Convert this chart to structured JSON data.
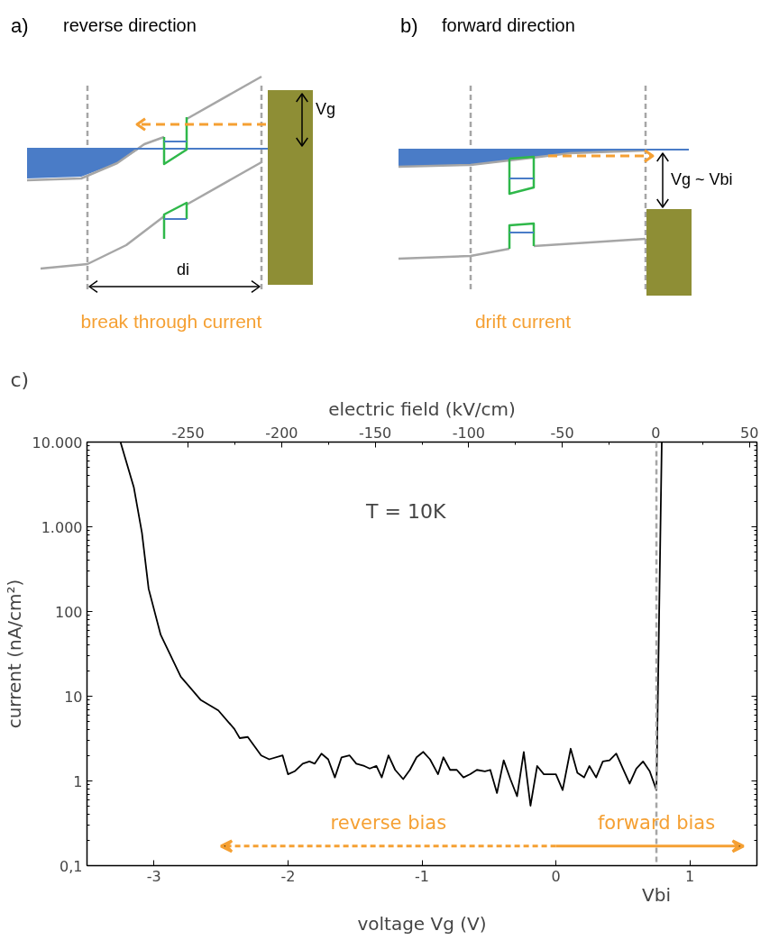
{
  "chart_data": [
    {
      "type": "other",
      "title": "reverse direction",
      "annotations": [
        "a)",
        "Vg",
        "di",
        "break through current"
      ]
    },
    {
      "type": "other",
      "title": "forward direction",
      "annotations": [
        "b)",
        "Vg ~ Vbi",
        "drift current"
      ]
    },
    {
      "type": "line",
      "xlabel": "voltage Vg (V)",
      "ylabel": "current (nA/cm²)",
      "x2label": "electric field (kV/cm)",
      "log": "y",
      "grid": false,
      "marker": "none",
      "line_style": "solid",
      "xlim": [
        -3.5,
        1.5
      ],
      "xticks": [
        -3,
        -2,
        -1,
        0,
        1
      ],
      "x2lim": [
        -304,
        54
      ],
      "x2ticks": [
        -250,
        -200,
        -150,
        -100,
        -50,
        0,
        50
      ],
      "ylim": [
        0.1,
        10000
      ],
      "yticks": [
        {
          "value": 0.1,
          "label": "0,1"
        },
        1,
        10,
        100,
        {
          "value": 1000,
          "label": "1.000"
        },
        {
          "value": 10000,
          "label": "10.000"
        }
      ],
      "series": [
        {
          "color": "#000000",
          "x": [
            -3.25,
            -3.15,
            -3.09,
            -3.04,
            -2.95,
            -2.8,
            -2.65,
            -2.52,
            -2.4,
            -2.36,
            -2.3,
            -2.2,
            -2.14,
            -2.04,
            -2.0,
            -1.95,
            -1.89,
            -1.84,
            -1.8,
            -1.75,
            -1.7,
            -1.65,
            -1.6,
            -1.54,
            -1.49,
            -1.43,
            -1.39,
            -1.34,
            -1.3,
            -1.25,
            -1.2,
            -1.14,
            -1.09,
            -1.04,
            -0.99,
            -0.94,
            -0.88,
            -0.84,
            -0.79,
            -0.74,
            -0.69,
            -0.64,
            -0.59,
            -0.53,
            -0.49,
            -0.44,
            -0.39,
            -0.34,
            -0.29,
            -0.24,
            -0.19,
            -0.14,
            -0.09,
            -0.03,
            0.0,
            0.05,
            0.11,
            0.16,
            0.21,
            0.25,
            0.3,
            0.35,
            0.4,
            0.45,
            0.5,
            0.55,
            0.6,
            0.65,
            0.7,
            0.75,
            0.79
          ],
          "values": [
            10000,
            2900,
            850,
            185,
            53,
            17,
            9,
            6.8,
            4.1,
            3.2,
            3.3,
            2.0,
            1.8,
            2.0,
            1.2,
            1.3,
            1.6,
            1.7,
            1.6,
            2.1,
            1.8,
            1.1,
            1.9,
            2.0,
            1.6,
            1.5,
            1.4,
            1.5,
            1.1,
            2.0,
            1.35,
            1.05,
            1.35,
            1.9,
            2.2,
            1.8,
            1.2,
            1.9,
            1.35,
            1.35,
            1.1,
            1.2,
            1.35,
            1.3,
            1.35,
            0.72,
            1.75,
            1.05,
            0.66,
            2.2,
            0.51,
            1.5,
            1.2,
            1.2,
            1.2,
            0.78,
            2.4,
            1.25,
            1.1,
            1.5,
            1.1,
            1.7,
            1.75,
            2.1,
            1.4,
            0.93,
            1.4,
            1.7,
            1.3,
            0.78,
            10000
          ]
        }
      ],
      "ref_lines": [
        {
          "axis": "x",
          "value": 0.75,
          "label": "Vbi",
          "color": "#a6a6a6",
          "line_style": "dashed"
        }
      ],
      "annotations": [
        "c)",
        "T = 10K",
        "reverse bias",
        "forward bias"
      ]
    }
  ]
}
